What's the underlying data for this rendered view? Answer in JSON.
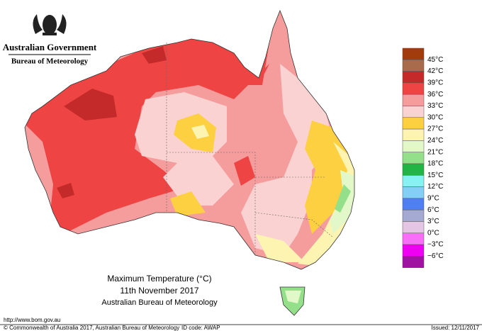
{
  "header": {
    "government": "Australian Government",
    "agency": "Bureau of Meteorology"
  },
  "map": {
    "title": "Maximum Temperature (°C)",
    "date": "11th November 2017",
    "source": "Australian Bureau of Meteorology"
  },
  "legend": {
    "colors": [
      "#a23c0c",
      "#a86c4c",
      "#c42a2a",
      "#ef4444",
      "#f59c9c",
      "#fbd2d2",
      "#fcd040",
      "#fdf4b2",
      "#e2f8c8",
      "#94e08a",
      "#22b444",
      "#86f2f2",
      "#84cff6",
      "#4f7ff0",
      "#a4aad2",
      "#e4c6e4",
      "#f76ef7",
      "#f000f0",
      "#a012a0"
    ],
    "labels": [
      "45°C",
      "42°C",
      "39°C",
      "36°C",
      "33°C",
      "30°C",
      "27°C",
      "24°C",
      "21°C",
      "18°C",
      "15°C",
      "12°C",
      "9°C",
      "6°C",
      "3°C",
      "0°C",
      "−3°C",
      "−6°C"
    ]
  },
  "footer": {
    "url": "http://www.bom.gov.au",
    "copyright": "© Commonwealth of Australia 2017, Australian Bureau of Meteorology",
    "id_code": "ID code: AWAP",
    "issued": "Issued: 12/11/2017"
  }
}
